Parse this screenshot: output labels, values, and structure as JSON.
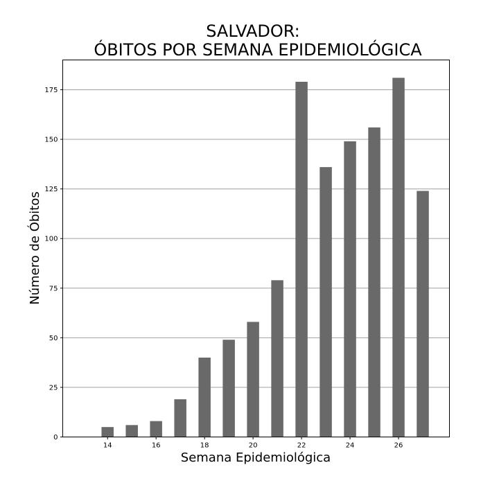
{
  "chart_data": {
    "type": "bar",
    "title_lines": [
      "SALVADOR:",
      "ÓBITOS POR SEMANA EPIDEMIOLÓGICA"
    ],
    "xlabel": "Semana Epidemiológica",
    "ylabel": "Número de Óbitos",
    "x": [
      14,
      15,
      16,
      17,
      18,
      19,
      20,
      21,
      22,
      23,
      24,
      25,
      26,
      27
    ],
    "values": [
      5,
      6,
      8,
      19,
      40,
      49,
      58,
      79,
      179,
      136,
      149,
      156,
      181,
      124
    ],
    "xlim": [
      12.15,
      28.1
    ],
    "ylim": [
      0,
      190
    ],
    "xticks": [
      14,
      16,
      18,
      20,
      22,
      24,
      26
    ],
    "yticks": [
      0,
      25,
      50,
      75,
      100,
      125,
      150,
      175
    ],
    "grid": "y",
    "bar_color": "#696969",
    "grid_color": "#a0a0a0"
  }
}
